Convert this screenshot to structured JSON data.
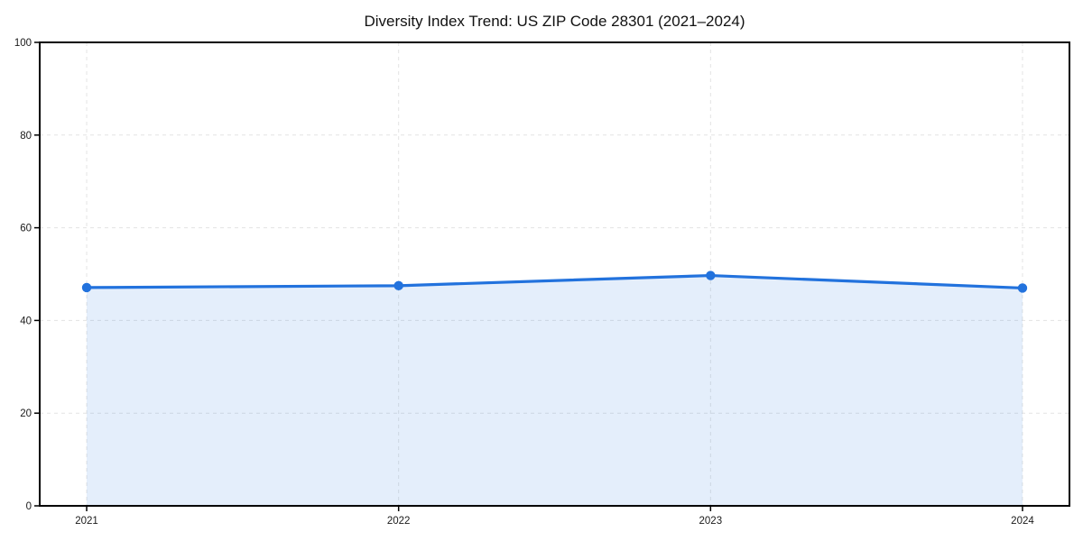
{
  "chart_data": {
    "type": "area",
    "title": "Diversity Index Trend: US ZIP Code 28301 (2021–2024)",
    "categories": [
      "2021",
      "2022",
      "2023",
      "2024"
    ],
    "series": [
      {
        "name": "Diversity Index",
        "values": [
          47.1,
          47.5,
          49.7,
          47.0
        ]
      }
    ],
    "xlabel": "",
    "ylabel": "",
    "ylim": [
      0,
      100
    ],
    "yticks": [
      0,
      20,
      40,
      60,
      80,
      100
    ],
    "grid": "dashed-both-axes",
    "legend_position": "none",
    "colors": {
      "line": "#2272dd",
      "marker": "#2272dd",
      "area_fill": "rgba(34,114,221,0.12)",
      "grid": "#e3e3e3",
      "spine": "#000000",
      "tick_label": "#1a1a1a",
      "title": "#111111",
      "background": "#ffffff"
    }
  }
}
